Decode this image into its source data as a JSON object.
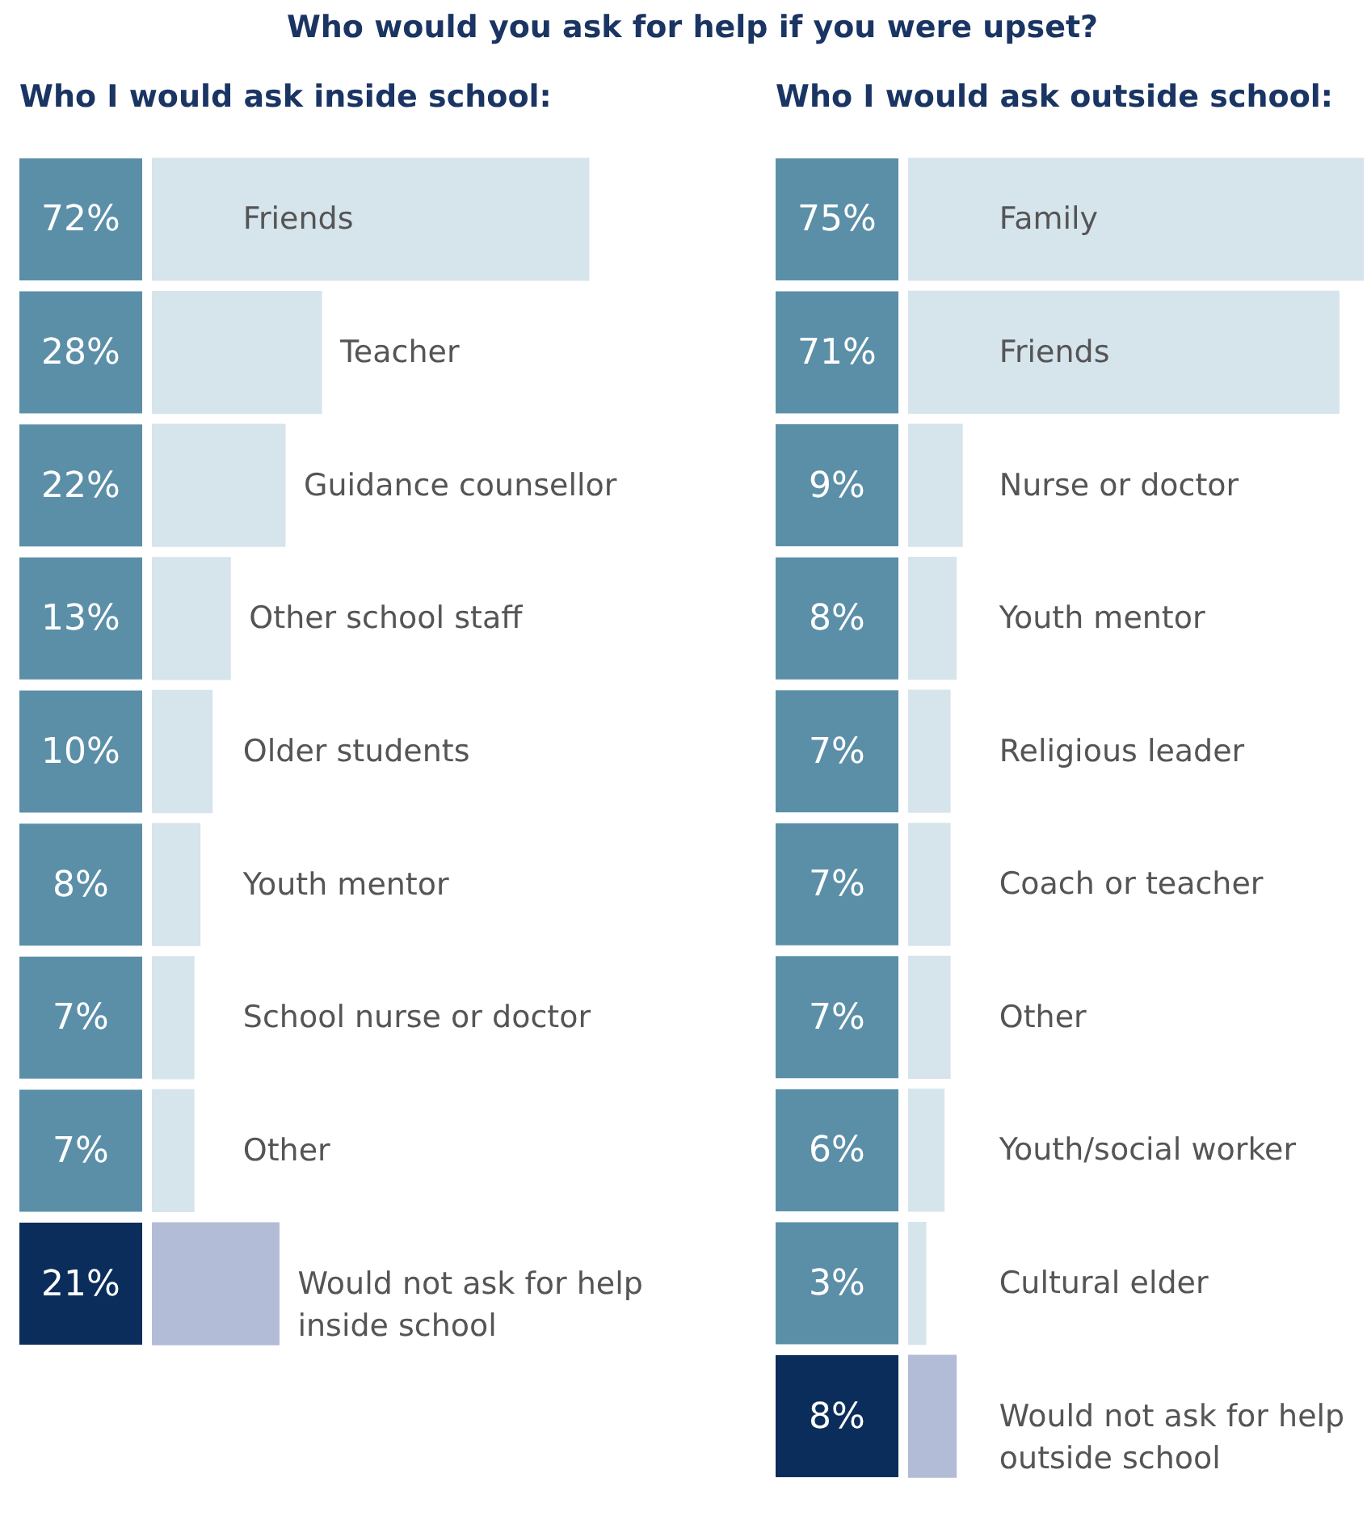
{
  "chart_data": [
    {
      "type": "bar",
      "orientation": "horizontal",
      "title": "Who would you ask for help if you were upset?",
      "subtitle": "Who I would ask inside school:",
      "categories": [
        "Friends",
        "Teacher",
        "Guidance counsellor",
        "Other school staff",
        "Older students",
        "Youth mentor",
        "School nurse or doctor",
        "Other",
        "Would not ask for help inside school"
      ],
      "values": [
        72,
        28,
        22,
        13,
        10,
        8,
        7,
        7,
        21
      ],
      "value_labels": [
        "72%",
        "28%",
        "22%",
        "13%",
        "10%",
        "8%",
        "7%",
        "7%",
        "21%"
      ],
      "colors": [
        "#d6e4ec",
        "#d6e4ec",
        "#d6e4ec",
        "#d6e4ec",
        "#d6e4ec",
        "#d6e4ec",
        "#d6e4ec",
        "#d6e4ec",
        "#b3bcd6"
      ]
    },
    {
      "type": "bar",
      "orientation": "horizontal",
      "subtitle": "Who I would ask outside school:",
      "categories": [
        "Family",
        "Friends",
        "Nurse or doctor",
        "Youth mentor",
        "Religious leader",
        "Coach or teacher",
        "Other",
        "Youth/social worker",
        "Cultural elder",
        "Would not ask for help outside school"
      ],
      "values": [
        75,
        71,
        9,
        8,
        7,
        7,
        7,
        6,
        3,
        8
      ],
      "value_labels": [
        "75%",
        "71%",
        "9%",
        "8%",
        "7%",
        "7%",
        "7%",
        "6%",
        "3%",
        "8%"
      ],
      "colors": [
        "#d6e4ec",
        "#d6e4ec",
        "#d6e4ec",
        "#d6e4ec",
        "#d6e4ec",
        "#d6e4ec",
        "#d6e4ec",
        "#d6e4ec",
        "#d6e4ec",
        "#b3bcd6"
      ]
    }
  ]
}
